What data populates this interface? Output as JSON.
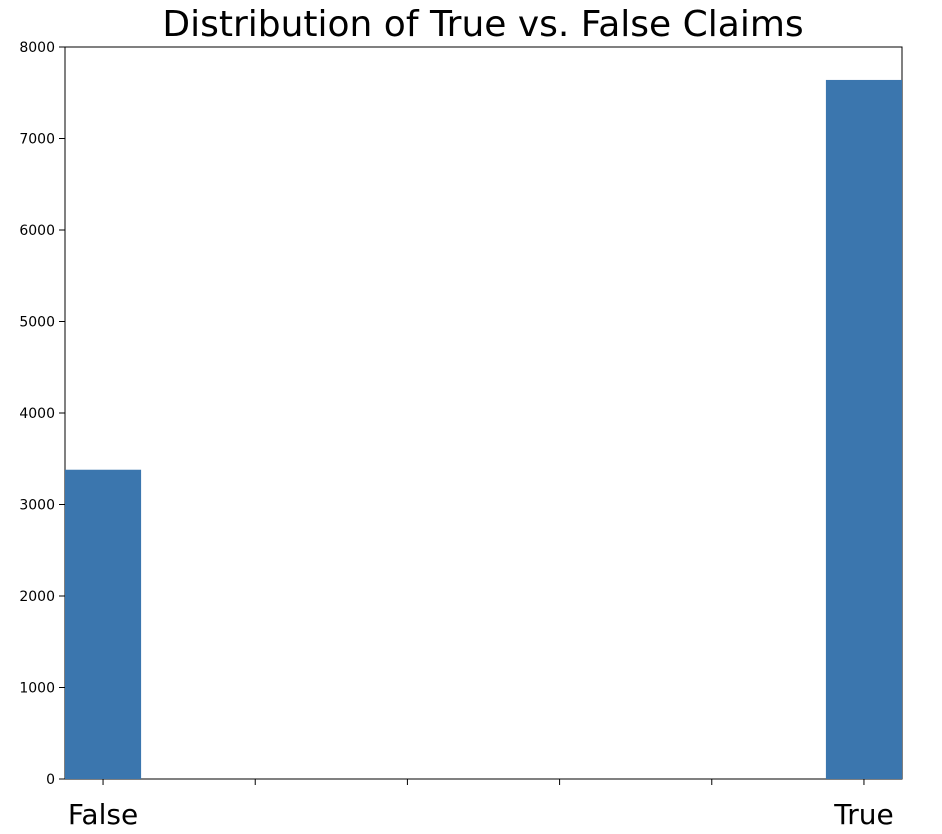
{
  "chart_data": {
    "type": "bar",
    "title": "Distribution of True vs. False Claims",
    "xlabel": "",
    "ylabel": "",
    "categories": [
      "False",
      "True"
    ],
    "values": [
      3380,
      7640
    ],
    "x_positions": [
      0,
      1
    ],
    "bar_width": 0.1,
    "xlim": [
      -0.05,
      1.05
    ],
    "ylim": [
      0,
      8000
    ],
    "y_ticks": [
      0,
      1000,
      2000,
      3000,
      4000,
      5000,
      6000,
      7000,
      8000
    ],
    "x_ticks": [
      0,
      0.2,
      0.4,
      0.6,
      0.8,
      1.0
    ],
    "x_tick_labels": [
      "False",
      "",
      "",
      "",
      "",
      "True"
    ],
    "grid": false,
    "legend": "none",
    "bar_color": "#3b76ae"
  }
}
